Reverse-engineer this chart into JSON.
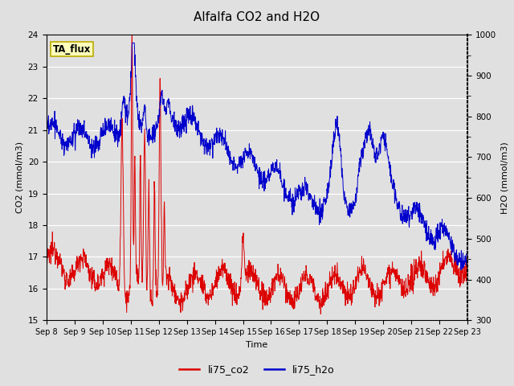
{
  "title": "Alfalfa CO2 and H2O",
  "xlabel": "Time",
  "ylabel_left": "CO2 (mmol/m3)",
  "ylabel_right": "H2O (mmol/m3)",
  "ylim_left": [
    15.0,
    24.0
  ],
  "ylim_right": [
    300,
    1000
  ],
  "yticks_left": [
    15.0,
    16.0,
    17.0,
    18.0,
    19.0,
    20.0,
    21.0,
    22.0,
    23.0,
    24.0
  ],
  "yticks_right": [
    300,
    400,
    500,
    600,
    700,
    750,
    800,
    850,
    900,
    950,
    1000
  ],
  "yticks_right_labeled": [
    300,
    400,
    500,
    600,
    700,
    800,
    900,
    1000
  ],
  "xtick_labels": [
    "Sep 8",
    "Sep 9",
    "Sep 10",
    "Sep 11",
    "Sep 12",
    "Sep 13",
    "Sep 14",
    "Sep 15",
    "Sep 16",
    "Sep 17",
    "Sep 18",
    "Sep 19",
    "Sep 20",
    "Sep 21",
    "Sep 22",
    "Sep 23"
  ],
  "co2_color": "#dd0000",
  "h2o_color": "#0000cc",
  "background_color": "#e0e0e0",
  "plot_bg_color": "#e0e0e0",
  "grid_color": "#ffffff",
  "legend_label_co2": "li75_co2",
  "legend_label_h2o": "li75_h2o",
  "annotation_text": "TA_flux",
  "annotation_bbox_facecolor": "#ffffbb",
  "annotation_bbox_edgecolor": "#bbaa00",
  "title_fontsize": 11,
  "label_fontsize": 8,
  "tick_fontsize": 7.5,
  "legend_fontsize": 9
}
